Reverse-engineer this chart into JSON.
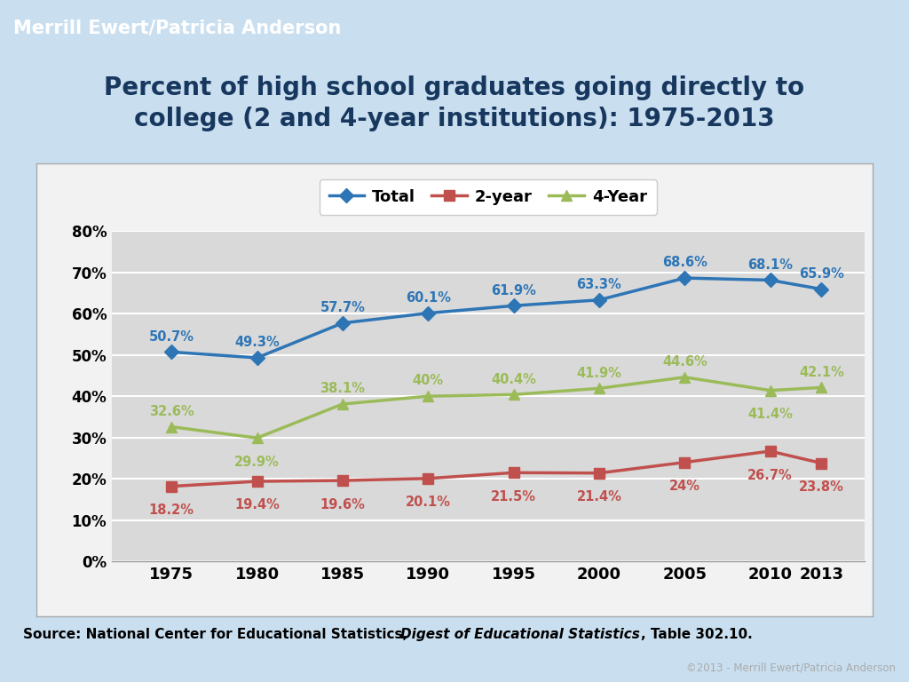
{
  "title": "Percent of high school graduates going directly to\ncollege (2 and 4-year institutions): 1975-2013",
  "header": "Merrill Ewert/Patricia Anderson",
  "footer_copyright": "©2013 - Merrill Ewert/Patricia Anderson",
  "years": [
    1975,
    1980,
    1985,
    1990,
    1995,
    2000,
    2005,
    2010,
    2013
  ],
  "total": [
    50.7,
    49.3,
    57.7,
    60.1,
    61.9,
    63.3,
    68.6,
    68.1,
    65.9
  ],
  "two_year": [
    18.2,
    19.4,
    19.6,
    20.1,
    21.5,
    21.4,
    24.0,
    26.7,
    23.8
  ],
  "four_year": [
    32.6,
    29.9,
    38.1,
    40.0,
    40.4,
    41.9,
    44.6,
    41.4,
    42.1
  ],
  "total_labels": [
    "50.7%",
    "49.3%",
    "57.7%",
    "60.1%",
    "61.9%",
    "63.3%",
    "68.6%",
    "68.1%",
    "65.9%"
  ],
  "two_year_labels": [
    "18.2%",
    "19.4%",
    "19.6%",
    "20.1%",
    "21.5%",
    "21.4%",
    "24%",
    "26.7%",
    "23.8%"
  ],
  "four_year_labels": [
    "32.6%",
    "29.9%",
    "38.1%",
    "40%",
    "40.4%",
    "41.9%",
    "44.6%",
    "41.4%",
    "42.1%"
  ],
  "total_label_va": [
    "bottom",
    "bottom",
    "bottom",
    "bottom",
    "bottom",
    "bottom",
    "bottom",
    "bottom",
    "bottom"
  ],
  "two_year_label_va": [
    "bottom",
    "bottom",
    "bottom",
    "bottom",
    "bottom",
    "bottom",
    "bottom",
    "bottom",
    "bottom"
  ],
  "four_year_label_above": [
    true,
    false,
    true,
    true,
    true,
    true,
    true,
    false,
    true
  ],
  "total_color": "#2E75B6",
  "two_year_color": "#C0504D",
  "four_year_color": "#9BBB59",
  "bg_color": "#C9DFF0",
  "header_bg": "#262626",
  "header_text": "#FFFFFF",
  "plot_bg": "#D9D9D9",
  "chart_outer_bg": "#F2F2F2",
  "title_color": "#17375E",
  "footer_dark_bg": "#262626",
  "footer_copyright_color": "#AAAAAA",
  "ylim": [
    0,
    80
  ],
  "yticks": [
    0,
    10,
    20,
    30,
    40,
    50,
    60,
    70,
    80
  ],
  "ytick_labels": [
    "0%",
    "10%",
    "20%",
    "30%",
    "40%",
    "50%",
    "60%",
    "70%",
    "80%"
  ]
}
